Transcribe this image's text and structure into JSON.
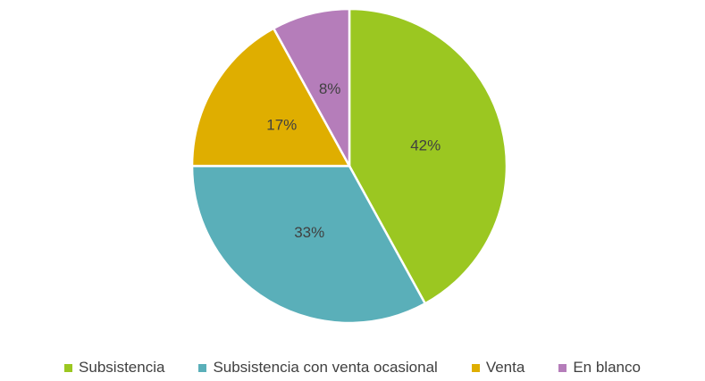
{
  "chart_data": {
    "type": "pie",
    "categories": [
      "Subsistencia",
      "Subsistencia con venta ocasional",
      "Venta",
      "En blanco"
    ],
    "values": [
      42,
      33,
      17,
      8
    ],
    "value_labels": [
      "42%",
      "33%",
      "17%",
      "8%"
    ],
    "colors": [
      "#9bc721",
      "#5aafb9",
      "#dfae00",
      "#b57dba"
    ],
    "legend": "bottom"
  }
}
